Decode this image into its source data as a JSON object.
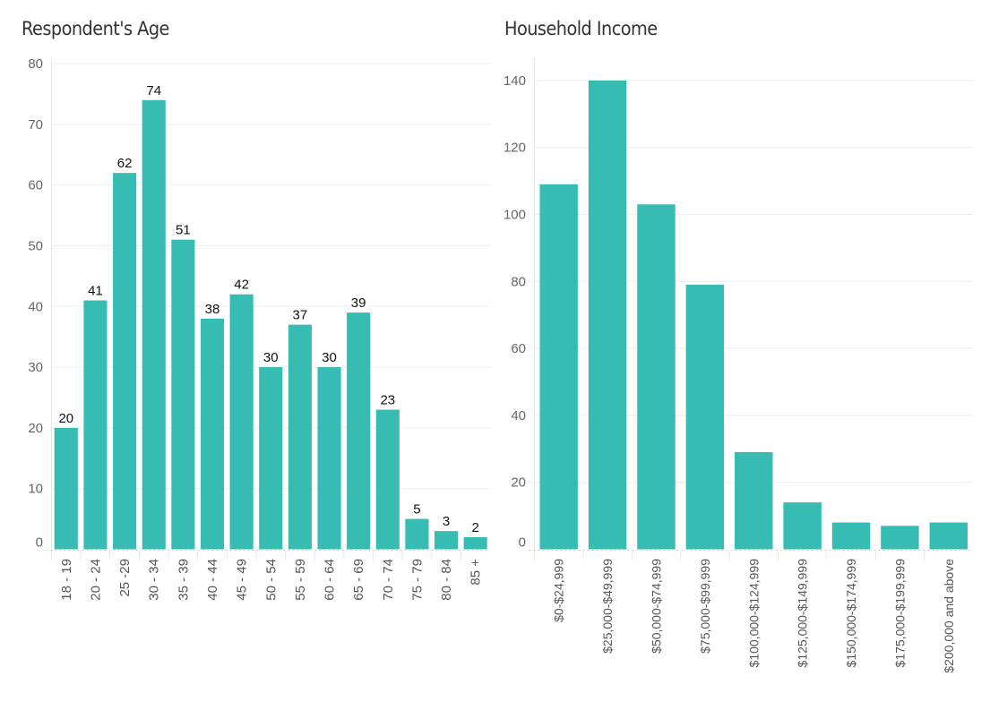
{
  "chart_data": [
    {
      "type": "bar",
      "title": "Respondent's Age",
      "xlabel": "",
      "ylabel": "",
      "ylim": [
        0,
        80
      ],
      "yticks": [
        0,
        10,
        20,
        30,
        40,
        50,
        60,
        70,
        80
      ],
      "grid": true,
      "data_labels": true,
      "color": "#36BCB2",
      "categories": [
        "18 - 19",
        "20 - 24",
        "25 -29",
        "30 - 34",
        "35 - 39",
        "40 - 44",
        "45 - 49",
        "50 - 54",
        "55 - 59",
        "60 - 64",
        "65 - 69",
        "70 - 74",
        "75 - 79",
        "80 - 84",
        "85 +"
      ],
      "values": [
        20,
        41,
        62,
        74,
        51,
        38,
        42,
        30,
        37,
        30,
        39,
        23,
        5,
        3,
        2
      ]
    },
    {
      "type": "bar",
      "title": "Household Income",
      "xlabel": "",
      "ylabel": "",
      "ylim": [
        0,
        145
      ],
      "yticks": [
        0,
        20,
        40,
        60,
        80,
        100,
        120,
        140
      ],
      "grid": true,
      "data_labels": false,
      "color": "#36BCB2",
      "categories": [
        "$0-$24,999",
        "$25,000-$49,999",
        "$50,000-$74,999",
        "$75,000-$99,999",
        "$100,000-$124,999",
        "$125,000-$149,999",
        "$150,000-$174,999",
        "$175,000-$199,999",
        "$200,000 and above"
      ],
      "values": [
        109,
        140,
        103,
        79,
        29,
        14,
        8,
        7,
        8
      ]
    }
  ]
}
